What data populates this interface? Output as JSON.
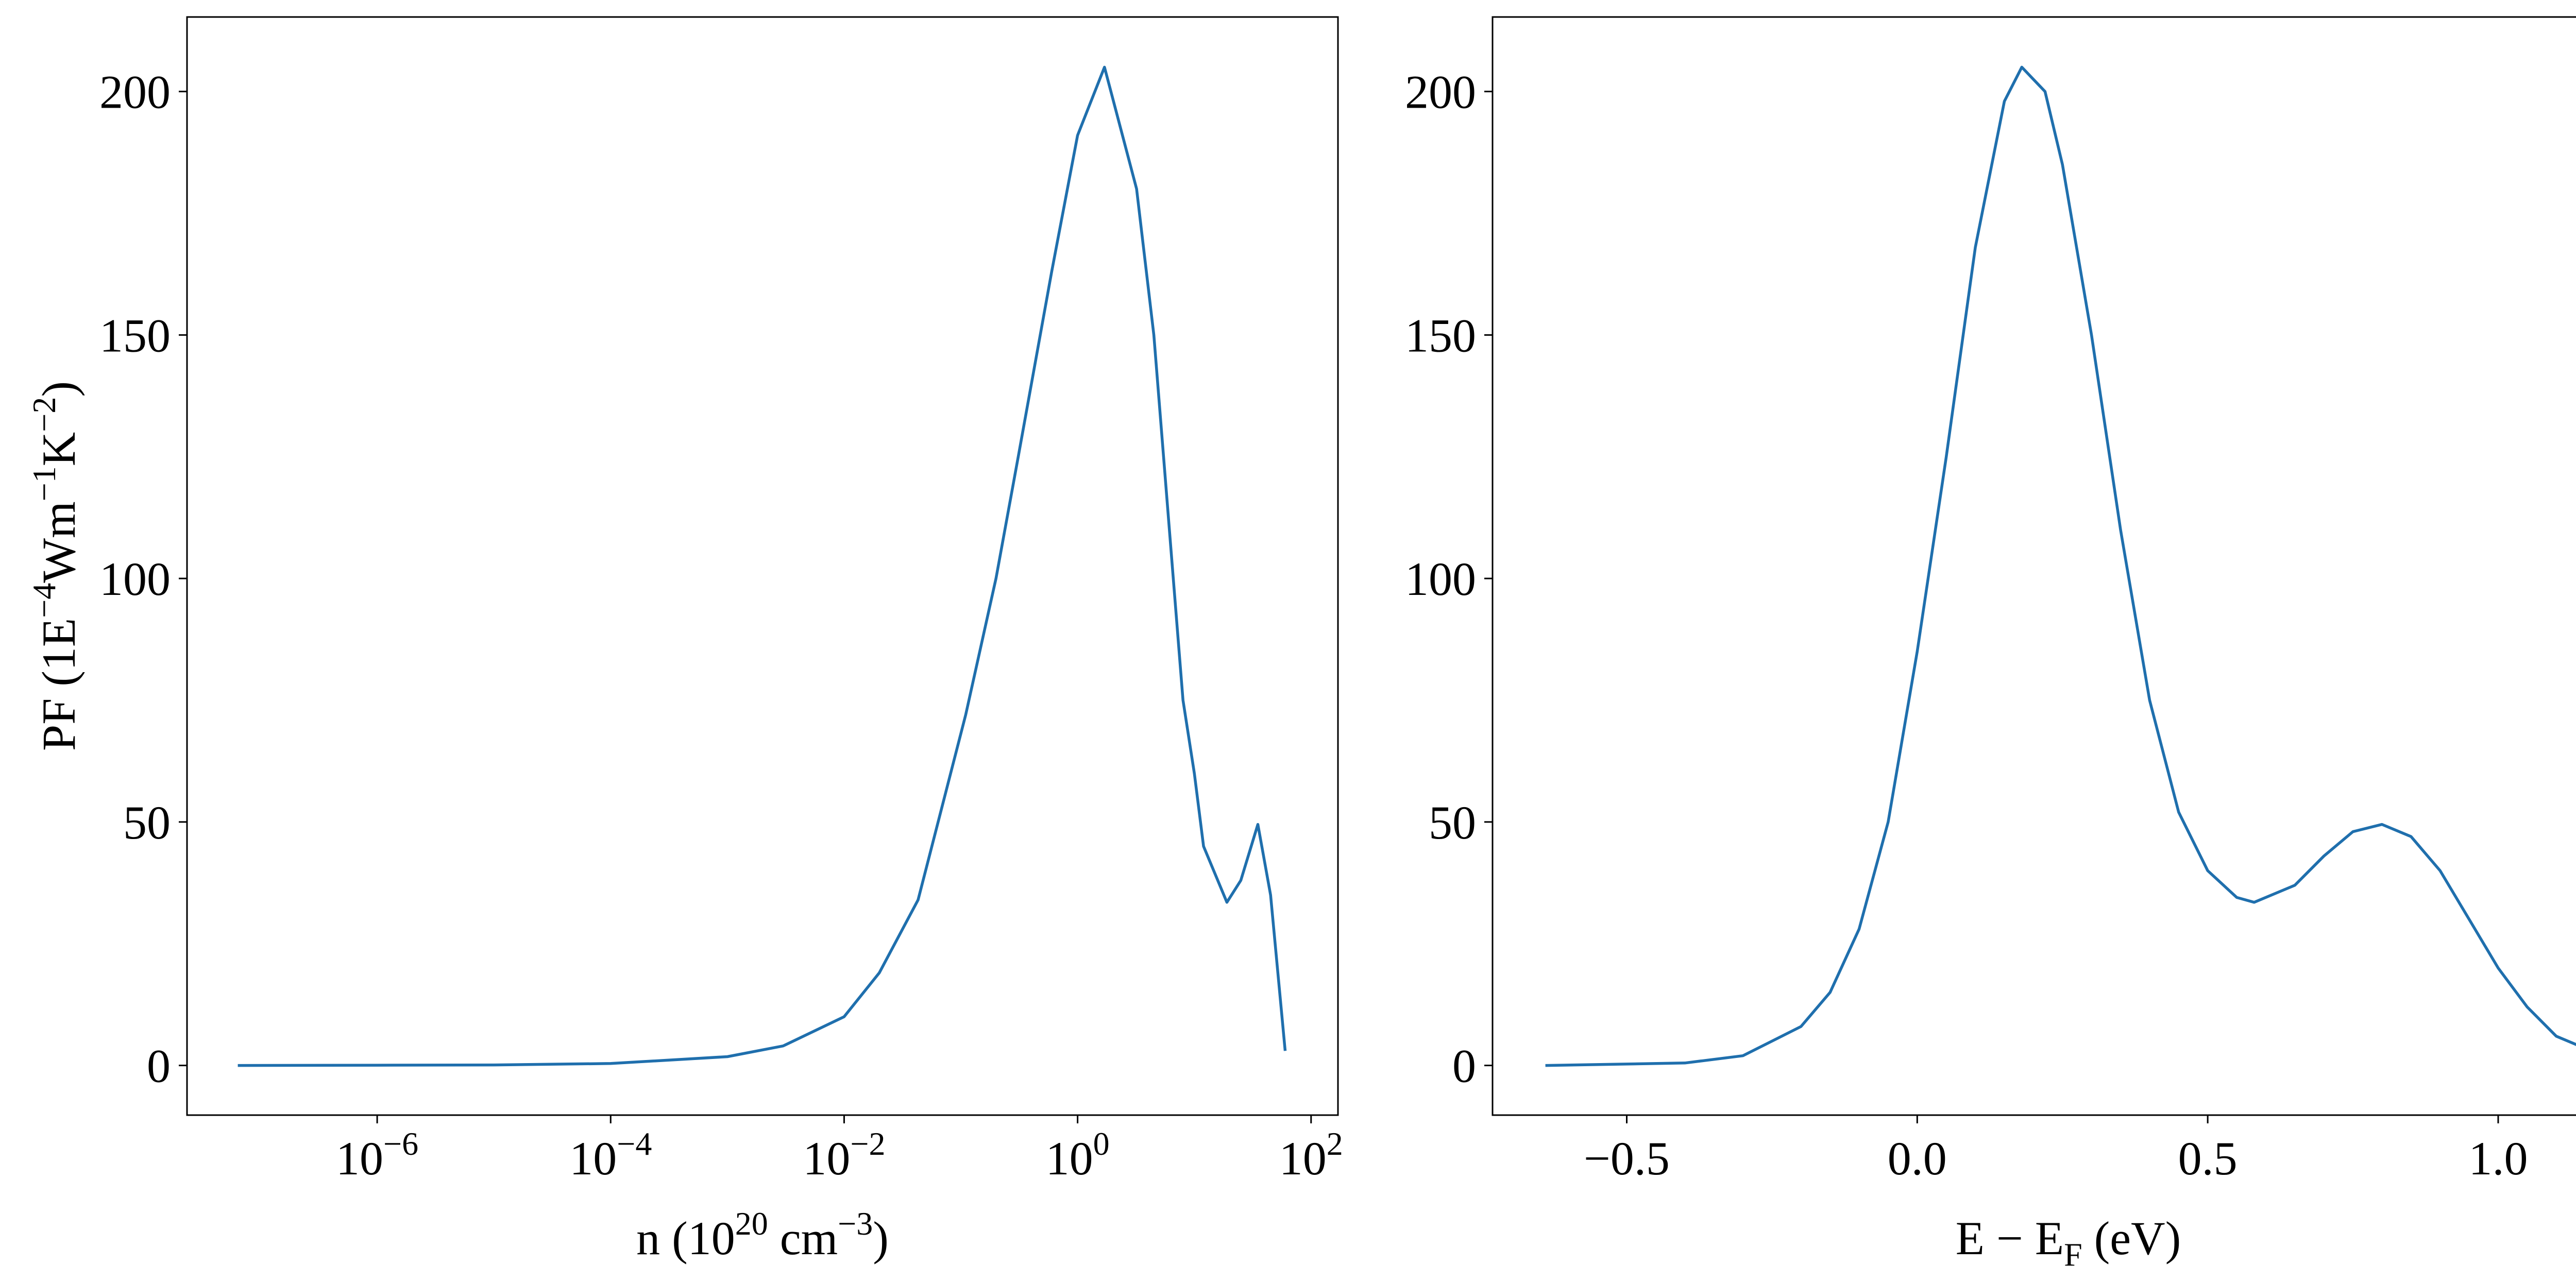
{
  "chart_data": [
    {
      "type": "line",
      "xscale": "log",
      "xlabel": [
        {
          "text": "n (10"
        },
        {
          "text": "20",
          "script": "sup"
        },
        {
          "text": " cm"
        },
        {
          "text": "−3",
          "script": "sup"
        },
        {
          "text": ")"
        }
      ],
      "ylabel": [
        {
          "text": "PF (1E"
        },
        {
          "text": "−4",
          "script": "sup"
        },
        {
          "text": "Wm"
        },
        {
          "text": "−1",
          "script": "sup"
        },
        {
          "text": "K"
        },
        {
          "text": "−2",
          "script": "sup"
        },
        {
          "text": ")"
        }
      ],
      "x": [
        6.4e-08,
        1e-06,
        1e-05,
        0.0001,
        0.001,
        0.003,
        0.01,
        0.02,
        0.043,
        0.11,
        0.2,
        0.31,
        0.6,
        1,
        1.7,
        3.2,
        4.5,
        8,
        10,
        12,
        19,
        25,
        35,
        45,
        60
      ],
      "values": [
        0,
        0.05,
        0.1,
        0.4,
        1.8,
        4,
        10,
        19,
        34,
        72,
        100,
        125,
        163,
        191,
        205,
        180,
        150,
        75,
        60,
        45,
        33.5,
        38,
        49.5,
        35,
        3
      ],
      "color": "#1f6fad",
      "xlim": [
        2.35e-08,
        170
      ],
      "ylim": [
        -10.2,
        215.3
      ],
      "xticks": [
        {
          "value": 1e-06,
          "label": [
            {
              "text": "10"
            },
            {
              "text": "−6",
              "script": "sup"
            }
          ]
        },
        {
          "value": 0.0001,
          "label": [
            {
              "text": "10"
            },
            {
              "text": "−4",
              "script": "sup"
            }
          ]
        },
        {
          "value": 0.01,
          "label": [
            {
              "text": "10"
            },
            {
              "text": "−2",
              "script": "sup"
            }
          ]
        },
        {
          "value": 1,
          "label": [
            {
              "text": "10"
            },
            {
              "text": "0",
              "script": "sup"
            }
          ]
        },
        {
          "value": 100,
          "label": [
            {
              "text": "10"
            },
            {
              "text": "2",
              "script": "sup"
            }
          ]
        }
      ],
      "yticks": [
        0,
        50,
        100,
        150,
        200
      ]
    },
    {
      "type": "line",
      "xscale": "linear",
      "xlabel": [
        {
          "text": "E − E"
        },
        {
          "text": "F",
          "script": "sub"
        },
        {
          "text": " (eV)"
        }
      ],
      "x": [
        -0.64,
        -0.4,
        -0.3,
        -0.2,
        -0.15,
        -0.1,
        -0.05,
        0.0,
        0.05,
        0.1,
        0.15,
        0.18,
        0.22,
        0.25,
        0.3,
        0.35,
        0.4,
        0.45,
        0.5,
        0.55,
        0.58,
        0.65,
        0.7,
        0.75,
        0.8,
        0.85,
        0.9,
        0.95,
        1.0,
        1.05,
        1.1,
        1.16
      ],
      "values": [
        0,
        0.5,
        2,
        8,
        15,
        28,
        50,
        85,
        125,
        168,
        198,
        205,
        200,
        185,
        150,
        110,
        75,
        52,
        40,
        34.5,
        33.5,
        37,
        43,
        48,
        49.5,
        47,
        40,
        30,
        20,
        12,
        6,
        3
      ],
      "color": "#1f6fad",
      "xlim": [
        -0.731,
        1.251
      ],
      "ylim": [
        -10.2,
        215.3
      ],
      "xticks": [
        {
          "value": -0.5,
          "label": "−0.5"
        },
        {
          "value": 0,
          "label": "0.0"
        },
        {
          "value": 0.5,
          "label": "0.5"
        },
        {
          "value": 1,
          "label": "1.0"
        }
      ],
      "yticks": [
        0,
        50,
        100,
        150,
        200
      ]
    }
  ]
}
